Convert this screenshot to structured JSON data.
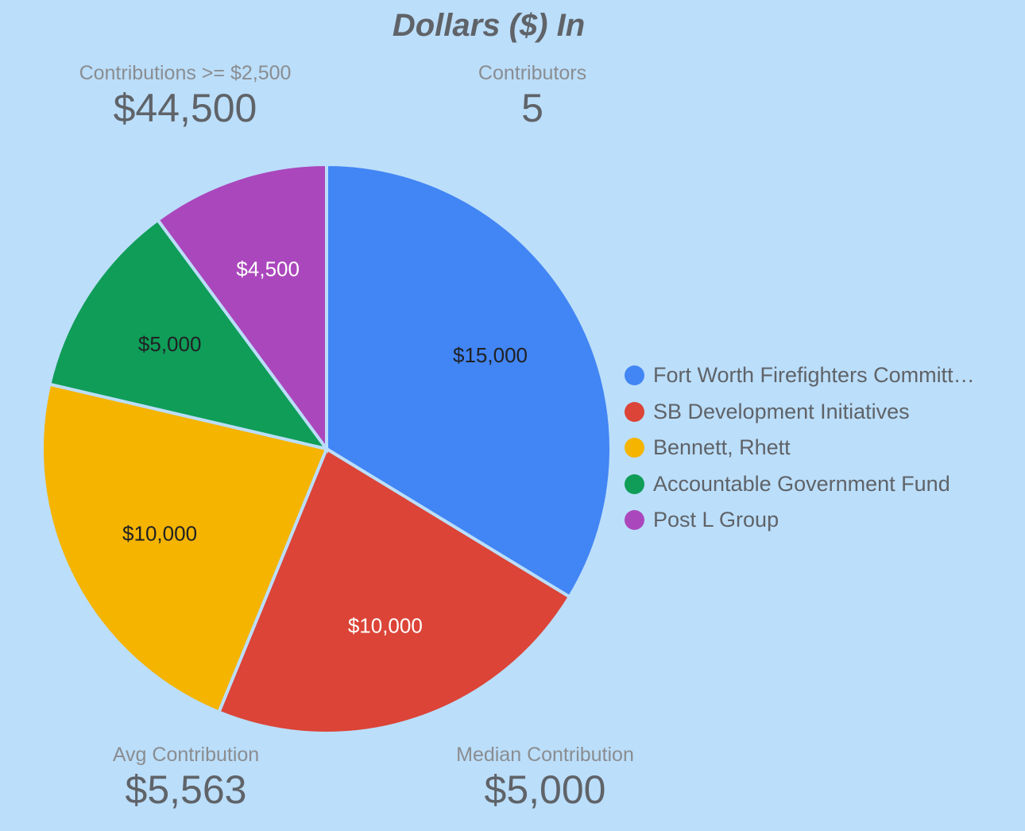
{
  "title": "Dollars ($) In",
  "metrics": {
    "large_contributions": {
      "label": "Contributions >= $2,500",
      "value": "$44,500"
    },
    "contributors": {
      "label": "Contributors",
      "value": "5"
    },
    "avg_contribution": {
      "label": "Avg Contribution",
      "value": "$5,563"
    },
    "median_contribution": {
      "label": "Median Contribution",
      "value": "$5,000"
    }
  },
  "chart_data": {
    "type": "pie",
    "title": "Dollars ($) In",
    "legend_position": "right",
    "slices": [
      {
        "name": "Fort Worth Firefighters Committ…",
        "value": 15000,
        "label": "$15,000",
        "color": "#4285f4",
        "label_color": "#202124"
      },
      {
        "name": "SB Development Initiatives",
        "value": 10000,
        "label": "$10,000",
        "color": "#db4437",
        "label_color": "#ffffff"
      },
      {
        "name": "Bennett, Rhett",
        "value": 10000,
        "label": "$10,000",
        "color": "#f4b400",
        "label_color": "#202124"
      },
      {
        "name": "Accountable Government Fund",
        "value": 5000,
        "label": "$5,000",
        "color": "#0f9d58",
        "label_color": "#202124"
      },
      {
        "name": "Post L Group",
        "value": 4500,
        "label": "$4,500",
        "color": "#ab47bc",
        "label_color": "#ffffff"
      }
    ]
  }
}
